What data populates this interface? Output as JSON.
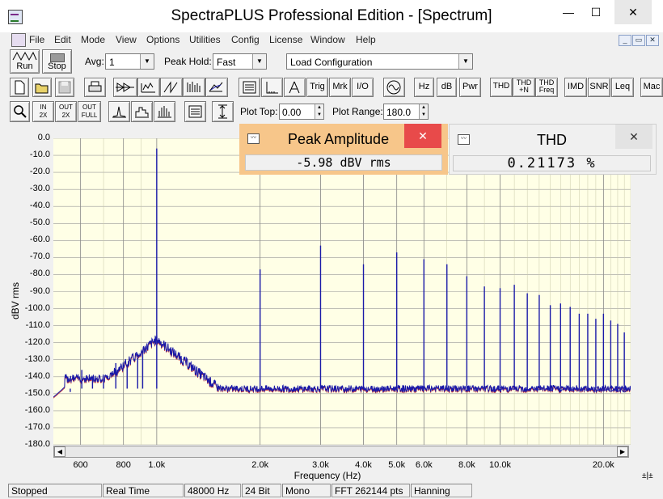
{
  "window": {
    "title": "SpectraPLUS Professional Edition - [Spectrum]",
    "minimize": "—",
    "maximize": "☐",
    "close": "✕"
  },
  "menu": [
    "File",
    "Edit",
    "Mode",
    "View",
    "Options",
    "Utilities",
    "Config",
    "License",
    "Window",
    "Help"
  ],
  "mdi_buttons": [
    "_",
    "▭",
    "✕"
  ],
  "toolbar1": {
    "run_label": "Run",
    "stop_label": "Stop",
    "avg_label": "Avg:",
    "avg_value": "1",
    "peak_hold_label": "Peak Hold:",
    "peak_hold_value": "Fast",
    "config_value": "Load Configuration"
  },
  "toolbar2": {
    "trig": "Trig",
    "mrk": "Mrk",
    "io": "I/O",
    "hz": "Hz",
    "db": "dB",
    "pwr": "Pwr",
    "thd": "THD",
    "thdn_top": "THD",
    "thdn_bot": "+N",
    "thdf_top": "THD",
    "thdf_bot": "Freq",
    "imd": "IMD",
    "snr": "SNR",
    "leq": "Leq",
    "mac": "Mac"
  },
  "toolbar3": {
    "zoom_in_top": "IN",
    "zoom_in_bot": "2X",
    "zoom_out_top": "OUT",
    "zoom_out_bot": "2X",
    "zoom_full_top": "OUT",
    "zoom_full_bot": "FULL",
    "plot_top_label": "Plot Top:",
    "plot_top_value": "0.00",
    "plot_range_label": "Plot Range:",
    "plot_range_value": "180.0"
  },
  "peak_popup": {
    "title": "Peak Amplitude",
    "value": "-5.98 dBV rms",
    "close": "✕",
    "bg": "#f7c68a",
    "close_bg": "#e84a4a"
  },
  "thd_popup": {
    "title": "THD",
    "value": "0.21173 %",
    "close": "✕"
  },
  "chart_data": {
    "type": "line",
    "ylabel": "dBV rms",
    "xlabel": "Frequency (Hz)",
    "xscale": "log",
    "xlim": [
      500,
      24000
    ],
    "ylim": [
      -180,
      0
    ],
    "y_ticks": [
      "0.0",
      "-10.0",
      "-20.0",
      "-30.0",
      "-40.0",
      "-50.0",
      "-60.0",
      "-70.0",
      "-80.0",
      "-90.0",
      "-100.0",
      "-110.0",
      "-120.0",
      "-130.0",
      "-140.0",
      "-150.0",
      "-160.0",
      "-170.0",
      "-180.0"
    ],
    "x_ticks": [
      {
        "v": 600,
        "label": "600"
      },
      {
        "v": 800,
        "label": "800"
      },
      {
        "v": 1000,
        "label": "1.0k"
      },
      {
        "v": 2000,
        "label": "2.0k"
      },
      {
        "v": 3000,
        "label": "3.0k"
      },
      {
        "v": 4000,
        "label": "4.0k"
      },
      {
        "v": 5000,
        "label": "5.0k"
      },
      {
        "v": 6000,
        "label": "6.0k"
      },
      {
        "v": 8000,
        "label": "8.0k"
      },
      {
        "v": 10000,
        "label": "10.0k"
      },
      {
        "v": 20000,
        "label": "20.0k"
      }
    ],
    "noise_floor": -147,
    "series": [
      {
        "color": "#1a1aa8",
        "peaks": [
          {
            "f": 560,
            "db": -149
          },
          {
            "f": 605,
            "db": -136
          },
          {
            "f": 650,
            "db": -140
          },
          {
            "f": 700,
            "db": -142
          },
          {
            "f": 760,
            "db": -132
          },
          {
            "f": 820,
            "db": -134
          },
          {
            "f": 880,
            "db": -129
          },
          {
            "f": 910,
            "db": -125
          },
          {
            "f": 1000,
            "db": -5.98
          },
          {
            "f": 2000,
            "db": -77
          },
          {
            "f": 3000,
            "db": -63
          },
          {
            "f": 4000,
            "db": -74
          },
          {
            "f": 5000,
            "db": -67
          },
          {
            "f": 6000,
            "db": -71
          },
          {
            "f": 7000,
            "db": -74
          },
          {
            "f": 8000,
            "db": -81
          },
          {
            "f": 9000,
            "db": -87
          },
          {
            "f": 10000,
            "db": -88
          },
          {
            "f": 11000,
            "db": -86
          },
          {
            "f": 12000,
            "db": -91
          },
          {
            "f": 13000,
            "db": -92
          },
          {
            "f": 14000,
            "db": -98
          },
          {
            "f": 15000,
            "db": -97
          },
          {
            "f": 16000,
            "db": -99
          },
          {
            "f": 17000,
            "db": -103
          },
          {
            "f": 18000,
            "db": -103
          },
          {
            "f": 19000,
            "db": -106
          },
          {
            "f": 20000,
            "db": -103
          },
          {
            "f": 21000,
            "db": -107
          },
          {
            "f": 22000,
            "db": -109
          },
          {
            "f": 23000,
            "db": -114
          }
        ]
      }
    ]
  },
  "status": [
    "Stopped",
    "Real Time",
    "48000 Hz",
    "24 Bit",
    "Mono",
    "FFT 262144 pts",
    "Hanning"
  ]
}
